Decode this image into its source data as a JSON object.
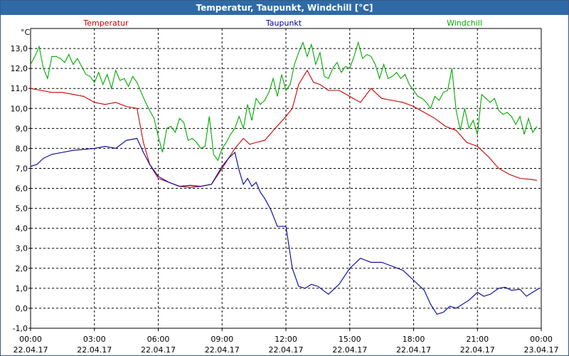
{
  "window": {
    "title": "Temperatur, Taupunkt, Windchill [°C]"
  },
  "chart_data": {
    "type": "line",
    "ylabel": "°C",
    "ylim": [
      -1.0,
      14.0
    ],
    "y_ticks": [
      "-1,0",
      "0,0",
      "1,0",
      "2,0",
      "3,0",
      "4,0",
      "5,0",
      "6,0",
      "7,0",
      "8,0",
      "9,0",
      "10,0",
      "11,0",
      "12,0",
      "13,0"
    ],
    "x_ticks": [
      {
        "time": "00:00",
        "date": "22.04.17"
      },
      {
        "time": "03:00",
        "date": "22.04.17"
      },
      {
        "time": "06:00",
        "date": "22.04.17"
      },
      {
        "time": "09:00",
        "date": "22.04.17"
      },
      {
        "time": "12:00",
        "date": "22.04.17"
      },
      {
        "time": "15:00",
        "date": "22.04.17"
      },
      {
        "time": "18:00",
        "date": "22.04.17"
      },
      {
        "time": "21:00",
        "date": "22.04.17"
      },
      {
        "time": "00:00",
        "date": "23.04.17"
      }
    ],
    "x_unit_note": "hours",
    "grid": true,
    "legend_position": "top",
    "series": [
      {
        "name": "Temperatur",
        "color": "#cc0000",
        "x": [
          0,
          0.5,
          1,
          1.5,
          2,
          2.5,
          3,
          3.5,
          4,
          4.5,
          5,
          5.3,
          5.6,
          6,
          6.5,
          7,
          7.5,
          8,
          8.5,
          9,
          9.3,
          9.6,
          10,
          10.3,
          10.6,
          11,
          11.5,
          12,
          12.3,
          12.6,
          13,
          13.3,
          13.6,
          14,
          14.5,
          15,
          15.5,
          16,
          16.5,
          17,
          17.5,
          18,
          18.5,
          19,
          19.5,
          20,
          20.5,
          21,
          21.5,
          22,
          22.5,
          23,
          23.5,
          23.8
        ],
        "values": [
          11.0,
          10.9,
          10.8,
          10.8,
          10.7,
          10.6,
          10.3,
          10.2,
          10.3,
          10.1,
          10.0,
          8.3,
          7.2,
          6.5,
          6.3,
          6.1,
          6.05,
          6.1,
          6.2,
          7.0,
          7.5,
          8.0,
          8.5,
          8.2,
          8.3,
          8.4,
          9.0,
          9.6,
          10.0,
          11.2,
          11.9,
          11.3,
          11.2,
          10.9,
          10.9,
          10.6,
          10.3,
          11.0,
          10.5,
          10.4,
          10.3,
          10.1,
          9.8,
          9.5,
          9.1,
          8.9,
          8.3,
          8.1,
          7.6,
          7.0,
          6.7,
          6.5,
          6.45,
          6.4
        ]
      },
      {
        "name": "Taupunkt",
        "color": "#000099",
        "x": [
          0,
          0.3,
          0.6,
          1,
          1.5,
          2,
          2.5,
          3,
          3.5,
          4,
          4.5,
          5,
          5.3,
          5.6,
          6,
          6.5,
          7,
          7.5,
          8,
          8.5,
          9,
          9.3,
          9.6,
          9.8,
          10,
          10.2,
          10.4,
          10.6,
          10.8,
          11,
          11.3,
          11.6,
          12,
          12.3,
          12.6,
          12.9,
          13.2,
          13.5,
          14,
          14.5,
          15,
          15.5,
          16,
          16.5,
          17,
          17.5,
          18,
          18.5,
          18.8,
          19.1,
          19.4,
          19.7,
          20,
          20.3,
          20.6,
          21,
          21.3,
          21.6,
          22,
          22.3,
          22.6,
          23,
          23.3,
          23.6,
          23.9
        ],
        "values": [
          7.1,
          7.2,
          7.5,
          7.7,
          7.8,
          7.9,
          7.95,
          8.0,
          8.1,
          8.0,
          8.4,
          8.5,
          7.8,
          7.2,
          6.6,
          6.3,
          6.1,
          6.15,
          6.1,
          6.2,
          7.1,
          7.5,
          7.8,
          6.9,
          6.2,
          6.5,
          6.1,
          6.3,
          5.8,
          5.5,
          4.9,
          4.1,
          4.1,
          2.0,
          1.1,
          1.0,
          1.2,
          1.1,
          0.7,
          1.2,
          2.0,
          2.5,
          2.3,
          2.3,
          2.1,
          1.9,
          1.4,
          0.9,
          0.2,
          -0.3,
          -0.2,
          0.1,
          0.0,
          0.2,
          0.4,
          0.8,
          0.6,
          0.7,
          1.0,
          1.05,
          0.9,
          0.95,
          0.6,
          0.8,
          1.0
        ]
      },
      {
        "name": "Windchill",
        "color": "#00aa00",
        "x": [
          0,
          0.2,
          0.4,
          0.6,
          0.8,
          1,
          1.2,
          1.4,
          1.6,
          1.8,
          2,
          2.2,
          2.4,
          2.6,
          2.8,
          3,
          3.2,
          3.4,
          3.6,
          3.8,
          4,
          4.2,
          4.4,
          4.6,
          4.8,
          5,
          5.2,
          5.4,
          5.6,
          5.8,
          6,
          6.2,
          6.4,
          6.6,
          6.8,
          7,
          7.2,
          7.4,
          7.6,
          7.8,
          8,
          8.2,
          8.4,
          8.6,
          8.8,
          9,
          9.2,
          9.4,
          9.6,
          9.8,
          10,
          10.2,
          10.4,
          10.6,
          10.8,
          11,
          11.2,
          11.4,
          11.6,
          11.8,
          12,
          12.2,
          12.4,
          12.6,
          12.8,
          13,
          13.2,
          13.4,
          13.6,
          13.8,
          14,
          14.2,
          14.4,
          14.6,
          14.8,
          15,
          15.2,
          15.4,
          15.6,
          15.8,
          16,
          16.2,
          16.4,
          16.6,
          16.8,
          17,
          17.2,
          17.4,
          17.6,
          17.8,
          18,
          18.2,
          18.4,
          18.6,
          18.8,
          19,
          19.2,
          19.4,
          19.6,
          19.8,
          20,
          20.2,
          20.4,
          20.6,
          20.8,
          21,
          21.2,
          21.4,
          21.6,
          21.8,
          22,
          22.2,
          22.4,
          22.6,
          22.8,
          23,
          23.2,
          23.4,
          23.6,
          23.8
        ],
        "values": [
          12.2,
          12.6,
          13.1,
          12.0,
          11.5,
          12.6,
          12.6,
          12.5,
          12.3,
          12.7,
          12.2,
          12.5,
          12.1,
          11.7,
          11.6,
          11.3,
          11.8,
          11.2,
          11.7,
          11.0,
          11.9,
          11.4,
          11.5,
          11.1,
          11.6,
          11.3,
          10.8,
          10.3,
          9.9,
          9.5,
          8.6,
          7.8,
          9.0,
          9.1,
          8.8,
          9.5,
          9.3,
          8.4,
          8.5,
          8.3,
          8.0,
          8.1,
          9.6,
          7.7,
          7.4,
          8.0,
          8.3,
          8.7,
          9.0,
          9.6,
          9.0,
          10.2,
          9.4,
          10.5,
          10.2,
          10.4,
          10.8,
          11.5,
          10.6,
          11.7,
          10.9,
          11.2,
          12.2,
          12.8,
          13.3,
          12.6,
          13.2,
          12.2,
          12.8,
          11.6,
          11.5,
          12.0,
          12.3,
          11.8,
          12.1,
          12.0,
          12.6,
          13.3,
          12.5,
          12.7,
          12.6,
          12.2,
          11.5,
          12.2,
          11.5,
          11.6,
          11.8,
          11.5,
          11.7,
          11.2,
          10.9,
          10.6,
          10.5,
          10.3,
          10.0,
          10.6,
          10.4,
          10.8,
          10.9,
          12.0,
          9.9,
          8.9,
          10.0,
          9.0,
          9.4,
          8.7,
          10.7,
          10.5,
          10.3,
          10.5,
          9.9,
          9.7,
          9.8,
          9.6,
          9.2,
          9.6,
          8.7,
          9.5,
          8.8,
          9.1
        ]
      }
    ]
  }
}
